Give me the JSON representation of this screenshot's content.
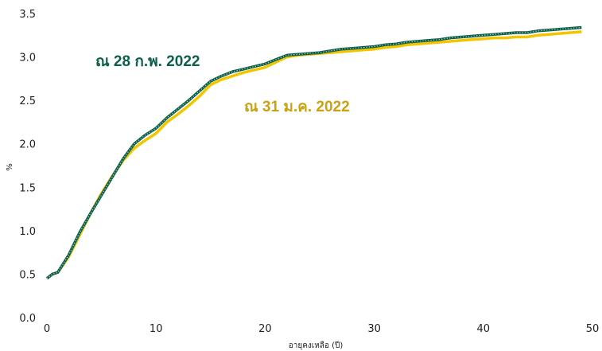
{
  "chart_data": {
    "type": "line",
    "xlabel": "อายุคงเหลือ (ปี)",
    "ylabel": "%",
    "xlim": [
      0,
      50
    ],
    "ylim": [
      0,
      3.5
    ],
    "xticks": [
      "0",
      "10",
      "20",
      "30",
      "40",
      "50"
    ],
    "yticks": [
      "0.0",
      "0.5",
      "1.0",
      "1.5",
      "2.0",
      "2.5",
      "3.0",
      "3.5"
    ],
    "grid": false,
    "series": [
      {
        "name": "ณ 28 ก.พ. 2022",
        "color": "#0d5e4a",
        "style": "dotted-outline",
        "x": [
          0,
          0.5,
          1,
          2,
          3,
          4,
          5,
          6,
          7,
          8,
          9,
          10,
          11,
          12,
          13,
          14,
          15,
          16,
          17,
          18,
          19,
          20,
          21,
          22,
          23,
          24,
          25,
          26,
          27,
          28,
          29,
          30,
          31,
          32,
          33,
          34,
          35,
          36,
          37,
          38,
          39,
          40,
          41,
          42,
          43,
          44,
          45,
          46,
          47,
          48,
          49
        ],
        "y": [
          0.45,
          0.5,
          0.52,
          0.72,
          0.98,
          1.2,
          1.41,
          1.62,
          1.83,
          2.0,
          2.1,
          2.18,
          2.3,
          2.4,
          2.5,
          2.61,
          2.72,
          2.78,
          2.83,
          2.86,
          2.89,
          2.92,
          2.97,
          3.02,
          3.03,
          3.04,
          3.05,
          3.07,
          3.09,
          3.1,
          3.11,
          3.12,
          3.14,
          3.15,
          3.17,
          3.18,
          3.19,
          3.2,
          3.22,
          3.23,
          3.24,
          3.25,
          3.26,
          3.27,
          3.28,
          3.28,
          3.3,
          3.31,
          3.32,
          3.33,
          3.34
        ]
      },
      {
        "name": "ณ 31 ม.ค. 2022",
        "color": "#f2c500",
        "style": "solid",
        "x": [
          0,
          0.5,
          1,
          2,
          3,
          4,
          5,
          6,
          7,
          8,
          9,
          10,
          11,
          12,
          13,
          14,
          15,
          16,
          17,
          18,
          19,
          20,
          21,
          22,
          23,
          24,
          25,
          26,
          27,
          28,
          29,
          30,
          31,
          32,
          33,
          34,
          35,
          36,
          37,
          38,
          39,
          40,
          41,
          42,
          43,
          44,
          45,
          46,
          47,
          48,
          49
        ],
        "y": [
          0.45,
          0.5,
          0.52,
          0.7,
          0.95,
          1.2,
          1.43,
          1.63,
          1.81,
          1.95,
          2.04,
          2.12,
          2.25,
          2.34,
          2.44,
          2.55,
          2.68,
          2.74,
          2.78,
          2.82,
          2.85,
          2.88,
          2.94,
          3.0,
          3.02,
          3.03,
          3.04,
          3.05,
          3.06,
          3.07,
          3.08,
          3.09,
          3.11,
          3.12,
          3.14,
          3.15,
          3.16,
          3.17,
          3.18,
          3.19,
          3.2,
          3.21,
          3.22,
          3.22,
          3.23,
          3.23,
          3.25,
          3.26,
          3.27,
          3.28,
          3.29
        ]
      }
    ],
    "annotations": [
      {
        "text": "ณ 28 ก.พ. 2022",
        "color": "#0d5e4a"
      },
      {
        "text": "ณ 31 ม.ค. 2022",
        "color": "#c9a112"
      }
    ]
  }
}
